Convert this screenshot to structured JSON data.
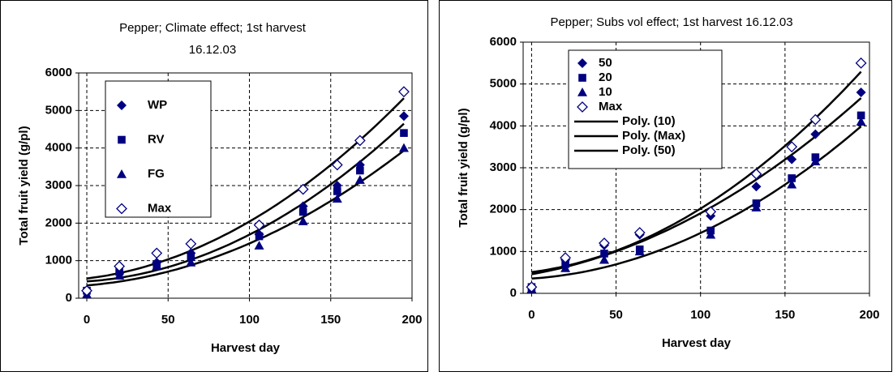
{
  "chart_data": [
    {
      "type": "scatter",
      "title": [
        "Pepper; Climate effect; 1st harvest",
        "16.12.03"
      ],
      "x_label": "Harvest day",
      "y_label": "Total fruit yield (g/pl)",
      "x": [
        0,
        20,
        43,
        64,
        106,
        133,
        154,
        168,
        195
      ],
      "series": [
        {
          "name": "WP",
          "marker": "diamond",
          "color": "#000080",
          "trendline": true,
          "values": [
            200,
            650,
            950,
            1200,
            1700,
            2450,
            3000,
            3550,
            4850
          ]
        },
        {
          "name": "RV",
          "marker": "square",
          "color": "#000080",
          "trendline": false,
          "values": [
            200,
            700,
            900,
            1100,
            1650,
            2300,
            2850,
            3400,
            4400
          ]
        },
        {
          "name": "FG",
          "marker": "triangle",
          "color": "#000080",
          "trendline": true,
          "values": [
            100,
            600,
            850,
            950,
            1400,
            2050,
            2650,
            3150,
            4000
          ]
        },
        {
          "name": "Max",
          "marker": "diamond-open",
          "color": "#000080",
          "trendline": true,
          "values": [
            200,
            850,
            1200,
            1450,
            1950,
            2900,
            3550,
            4200,
            5500
          ]
        }
      ],
      "xlim": [
        -5,
        200
      ],
      "xticks": [
        0,
        50,
        100,
        150,
        200
      ],
      "ylim": [
        0,
        6000
      ],
      "yticks": [
        0,
        1000,
        2000,
        3000,
        4000,
        5000,
        6000
      ],
      "grid": true
    },
    {
      "type": "scatter",
      "title": [
        "Pepper; Subs vol effect; 1st harvest 16.12.03"
      ],
      "x_label": "Harvest day",
      "y_label": "Total fruit yield (g/pl)",
      "x": [
        0,
        20,
        43,
        64,
        106,
        133,
        154,
        168,
        195
      ],
      "series": [
        {
          "name": "50",
          "marker": "diamond",
          "color": "#000080",
          "trendline": false,
          "values": [
            150,
            800,
            1150,
            1400,
            1850,
            2550,
            3200,
            3800,
            4800
          ]
        },
        {
          "name": "20",
          "marker": "square",
          "color": "#000080",
          "trendline": false,
          "values": [
            150,
            700,
            950,
            1050,
            1500,
            2150,
            2750,
            3250,
            4250
          ]
        },
        {
          "name": "10",
          "marker": "triangle",
          "color": "#000080",
          "trendline": false,
          "values": [
            100,
            600,
            800,
            1000,
            1400,
            2050,
            2600,
            3150,
            4100
          ]
        },
        {
          "name": "Max",
          "marker": "diamond-open",
          "color": "#000080",
          "trendline": false,
          "values": [
            150,
            850,
            1200,
            1450,
            1950,
            2850,
            3500,
            4150,
            5500
          ]
        }
      ],
      "trendlines": [
        {
          "name": "Poly. (10)",
          "series": 2,
          "color": "#000000"
        },
        {
          "name": "Poly. (Max)",
          "series": 3,
          "color": "#000000"
        },
        {
          "name": "Poly. (50)",
          "series": 0,
          "color": "#000000"
        }
      ],
      "xlim": [
        -5,
        200
      ],
      "xticks": [
        0,
        50,
        100,
        150,
        200
      ],
      "ylim": [
        0,
        6000
      ],
      "yticks": [
        0,
        1000,
        2000,
        3000,
        4000,
        5000,
        6000
      ],
      "grid": true
    }
  ]
}
